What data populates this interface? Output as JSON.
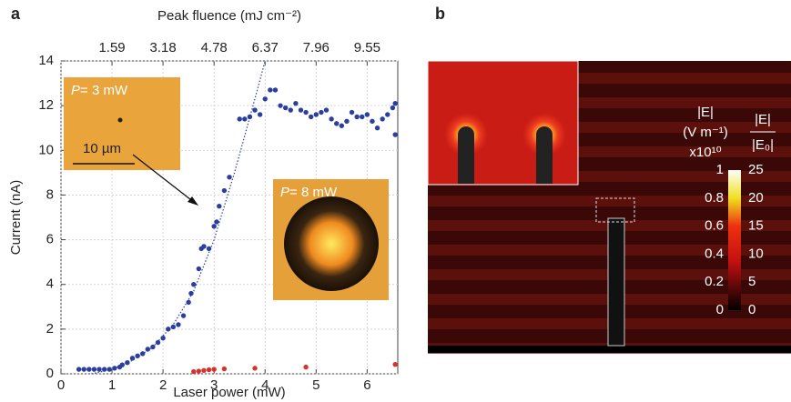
{
  "panel_labels": [
    "a",
    "b"
  ],
  "chart_data": {
    "type": "scatter",
    "x_label": "Laser power (mW)",
    "y_label": "Current (nA)",
    "x2_label": "Peak fluence (mJ cm⁻²)",
    "xlim": [
      0,
      6.6
    ],
    "xticks": [
      0,
      1,
      2,
      3,
      4,
      5,
      6
    ],
    "x2ticks": [
      {
        "value": 1,
        "label": "1.59"
      },
      {
        "value": 2,
        "label": "3.18"
      },
      {
        "value": 3,
        "label": "4.78"
      },
      {
        "value": 4,
        "label": "6.37"
      },
      {
        "value": 5,
        "label": "7.96"
      },
      {
        "value": 6,
        "label": "9.55"
      }
    ],
    "ylim": [
      0,
      14
    ],
    "yticks": [
      0,
      2,
      4,
      6,
      8,
      10,
      12,
      14
    ],
    "grid": true,
    "series": [
      {
        "color": "#2a3f9e",
        "x": [
          0.35,
          0.45,
          0.55,
          0.65,
          0.75,
          0.85,
          0.95,
          1.05,
          1.15,
          1.2,
          1.3,
          1.4,
          1.5,
          1.6,
          1.7,
          1.8,
          1.9,
          2.0,
          2.1,
          2.2,
          2.3,
          2.4,
          2.5,
          2.55,
          2.6,
          2.7,
          2.75,
          2.8,
          2.9,
          3.0,
          3.05,
          3.1,
          3.2,
          3.3,
          3.5,
          3.6,
          3.7,
          3.8,
          3.9,
          4.0,
          4.1,
          4.2,
          4.3,
          4.4,
          4.5,
          4.6,
          4.7,
          4.8,
          4.9,
          5.0,
          5.1,
          5.2,
          5.3,
          5.4,
          5.5,
          5.6,
          5.7,
          5.8,
          5.9,
          6.0,
          6.1,
          6.2,
          6.3,
          6.4,
          6.5,
          6.55,
          6.55
        ],
        "values": [
          0.2,
          0.2,
          0.2,
          0.2,
          0.2,
          0.2,
          0.2,
          0.25,
          0.3,
          0.4,
          0.5,
          0.7,
          0.8,
          0.9,
          1.1,
          1.2,
          1.4,
          1.6,
          2.0,
          2.1,
          2.2,
          2.6,
          3.2,
          3.6,
          4.0,
          4.7,
          5.6,
          5.7,
          5.6,
          6.6,
          6.8,
          7.5,
          8.2,
          8.8,
          11.4,
          11.4,
          11.5,
          11.8,
          11.6,
          12.3,
          12.7,
          12.7,
          12.0,
          11.9,
          11.8,
          12.1,
          11.8,
          11.7,
          11.5,
          11.6,
          11.7,
          11.8,
          11.4,
          11.2,
          11.1,
          11.3,
          11.7,
          11.5,
          11.5,
          11.6,
          11.3,
          11.0,
          11.4,
          11.6,
          11.9,
          12.1,
          10.7
        ]
      },
      {
        "color": "#d6342b",
        "x": [
          2.6,
          2.7,
          2.8,
          2.9,
          3.0,
          3.2,
          3.8,
          4.8,
          6.55
        ],
        "values": [
          0.1,
          0.12,
          0.15,
          0.18,
          0.2,
          0.22,
          0.25,
          0.3,
          0.42
        ]
      },
      {
        "type": "line",
        "color": "#2a3f9e",
        "x": [
          0.6,
          1.0,
          1.4,
          1.8,
          2.2,
          2.6,
          3.0,
          3.4,
          3.8,
          4.0
        ],
        "values": [
          0,
          0.2,
          0.6,
          1.2,
          2.2,
          3.7,
          6.0,
          9.0,
          12.3,
          14
        ]
      }
    ]
  },
  "insets": [
    {
      "var": "P",
      "text": "= 3 mW",
      "scale": "10 µm"
    },
    {
      "var": "P",
      "text": "= 8 mW"
    }
  ],
  "panel_b": {
    "left_title": [
      "|E|",
      "(V m⁻¹)",
      "x10¹⁰"
    ],
    "right_title": [
      "|E|",
      "|E₀|"
    ],
    "left_ticks": [
      1,
      0.8,
      0.6,
      0.4,
      0.2,
      0
    ],
    "right_ticks": [
      25,
      20,
      15,
      10,
      5,
      0
    ]
  }
}
